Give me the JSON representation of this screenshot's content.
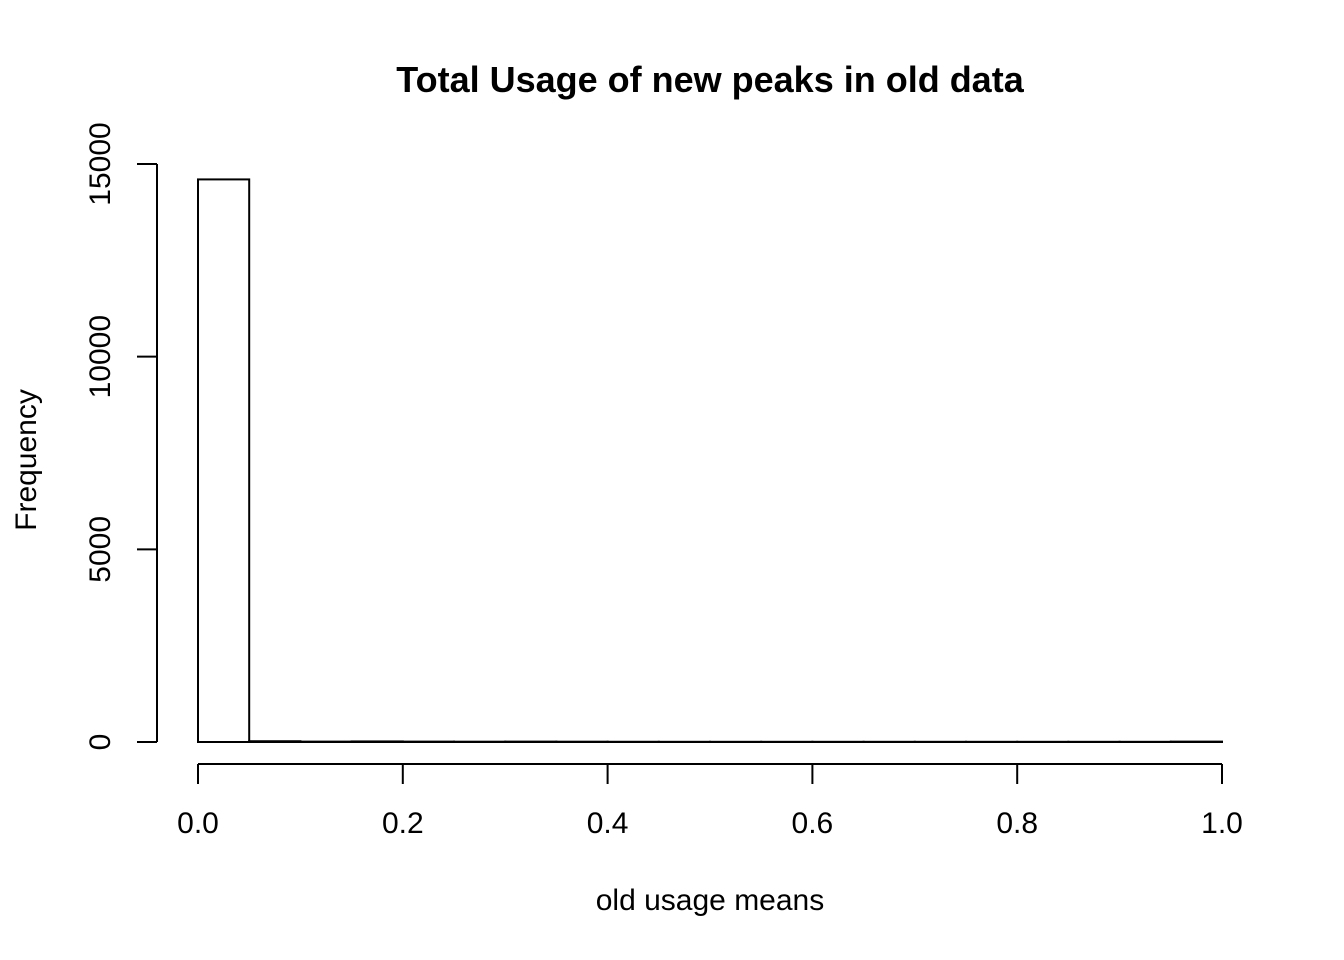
{
  "chart_data": {
    "type": "bar",
    "title": "Total Usage of new peaks in old data",
    "xlabel": "old usage means",
    "ylabel": "Frequency",
    "bin_width": 0.05,
    "bins": [
      0.0,
      0.05,
      0.1,
      0.15,
      0.2,
      0.25,
      0.3,
      0.35,
      0.4,
      0.45,
      0.5,
      0.55,
      0.6,
      0.65,
      0.7,
      0.75,
      0.8,
      0.85,
      0.9,
      0.95
    ],
    "values": [
      14600,
      20,
      10,
      15,
      10,
      8,
      10,
      8,
      6,
      5,
      5,
      5,
      5,
      5,
      5,
      5,
      5,
      5,
      5,
      10
    ],
    "xlim": [
      0,
      1
    ],
    "ylim": [
      0,
      15000
    ],
    "x_ticks": [
      "0.0",
      "0.2",
      "0.4",
      "0.6",
      "0.8",
      "1.0"
    ],
    "x_tick_values": [
      0,
      0.2,
      0.4,
      0.6,
      0.8,
      1.0
    ],
    "y_ticks": [
      "0",
      "5000",
      "10000",
      "15000"
    ],
    "y_tick_values": [
      0,
      5000,
      10000,
      15000
    ],
    "grid": false,
    "legend": "none"
  }
}
